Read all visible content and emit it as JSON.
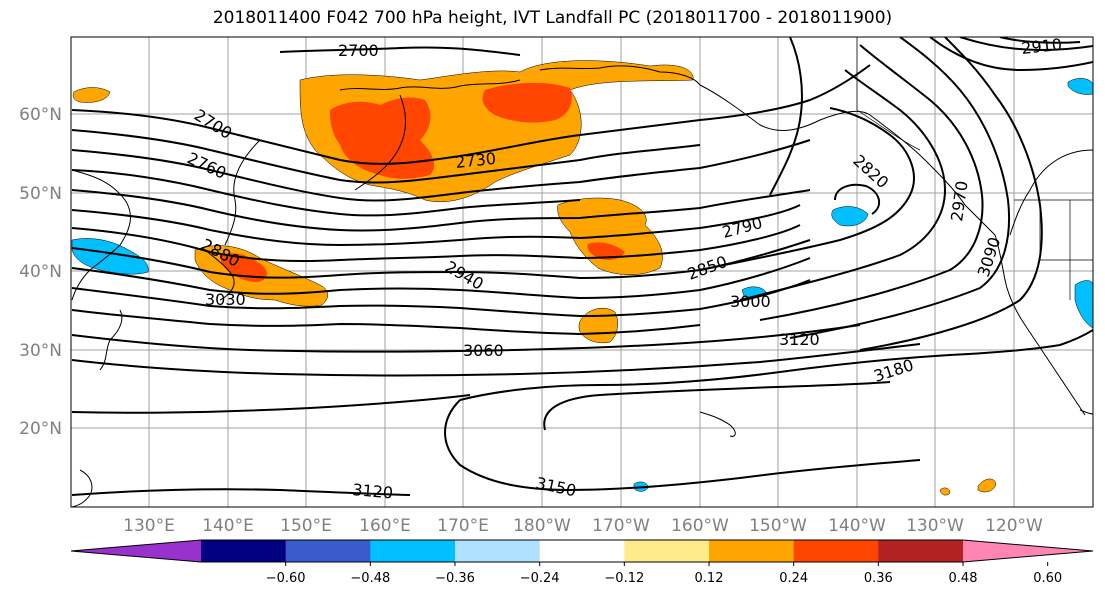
{
  "title": "2018011400 F042 700 hPa height, IVT Landfall PC (2018011700 - 2018011900)",
  "lat_labels": [
    "60°N",
    "50°N",
    "40°N",
    "30°N",
    "20°N"
  ],
  "lon_labels": [
    "130°E",
    "140°E",
    "150°E",
    "160°E",
    "170°E",
    "180°W",
    "170°W",
    "160°W",
    "150°W",
    "140°W",
    "130°W",
    "120°W"
  ],
  "contour_labels": [
    "2700",
    "2700",
    "2760",
    "2730",
    "2880",
    "3030",
    "2940",
    "2790",
    "2850",
    "3000",
    "3060",
    "3120",
    "3180",
    "3120",
    "3150",
    "2820",
    "2910",
    "3090",
    "2970"
  ],
  "colorbar": {
    "ticks": [
      "−0.60",
      "−0.48",
      "−0.36",
      "−0.24",
      "−0.12",
      "0.12",
      "0.24",
      "0.36",
      "0.48",
      "0.60"
    ],
    "colors": [
      "#9932cc",
      "#000080",
      "#3a5bcb",
      "#00bfff",
      "#b0e0ff",
      "#ffffff",
      "#ffeb8a",
      "#ffa500",
      "#ff4500",
      "#b22222",
      "#ff85b3"
    ]
  },
  "colors": {
    "land": "#000000",
    "grid": "#a0a0a0",
    "contour": "#000000"
  }
}
